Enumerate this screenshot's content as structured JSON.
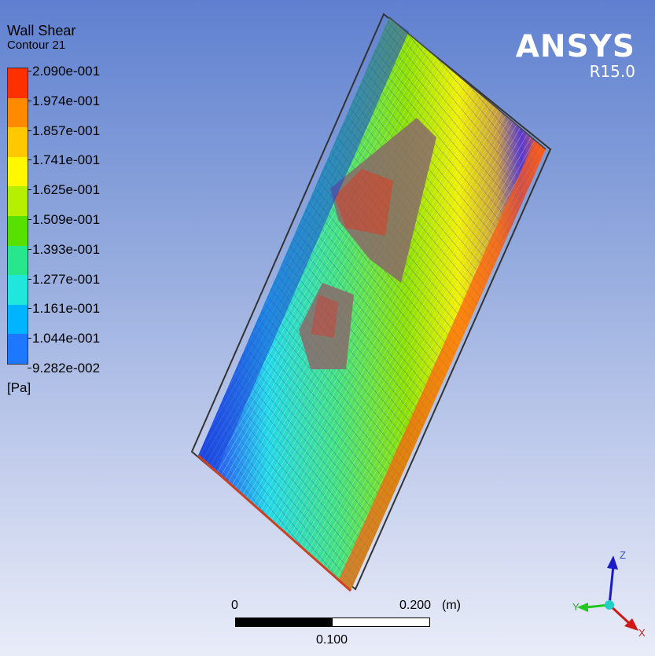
{
  "legend": {
    "title": "Wall Shear",
    "subtitle": "Contour 21",
    "units": "[Pa]",
    "ticks": [
      "2.090e-001",
      "1.974e-001",
      "1.857e-001",
      "1.741e-001",
      "1.625e-001",
      "1.509e-001",
      "1.393e-001",
      "1.277e-001",
      "1.161e-001",
      "1.044e-001",
      "9.282e-002"
    ],
    "colors": [
      "#ff3000",
      "#ff8a00",
      "#ffc800",
      "#fff800",
      "#b6f000",
      "#58e000",
      "#28e68c",
      "#20e6dc",
      "#00b4ff",
      "#1e78ff",
      "#0a3cdc"
    ]
  },
  "brand": {
    "name": "ANSYS",
    "version": "R15.0"
  },
  "scale": {
    "start": "0",
    "end": "0.200",
    "unit": "(m)",
    "mid": "0.100"
  },
  "triad": {
    "z": "Z",
    "y": "Y",
    "x": "X"
  }
}
